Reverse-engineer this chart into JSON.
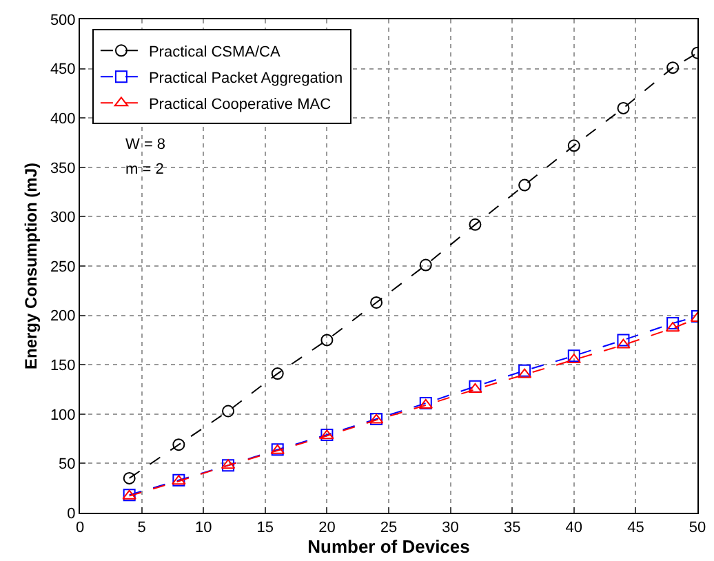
{
  "chart_data": {
    "type": "line",
    "xlabel": "Number of Devices",
    "ylabel": "Energy Consumption (mJ)",
    "x": [
      4,
      8,
      12,
      16,
      20,
      24,
      28,
      32,
      36,
      40,
      44,
      48,
      50
    ],
    "series": [
      {
        "name": "Practical CSMA/CA",
        "color": "#000000",
        "marker": "circle",
        "line_style": "dashed",
        "values": [
          35,
          69,
          103,
          141,
          175,
          213,
          251,
          292,
          332,
          372,
          410,
          451,
          466
        ]
      },
      {
        "name": "Practical Packet Aggregation",
        "color": "#0000ff",
        "marker": "square",
        "line_style": "dashed",
        "values": [
          18,
          33,
          48,
          64,
          79,
          95,
          111,
          128,
          144,
          159,
          175,
          192,
          199
        ]
      },
      {
        "name": "Practical Cooperative MAC",
        "color": "#ff0000",
        "marker": "triangle",
        "line_style": "dashed",
        "values": [
          17,
          32,
          48,
          63,
          78,
          94,
          109,
          125,
          140,
          155,
          170,
          187,
          197
        ]
      }
    ],
    "annotations": [
      "W = 8",
      "m = 2"
    ],
    "xlim": [
      0,
      50
    ],
    "xticks": [
      0,
      5,
      10,
      15,
      20,
      25,
      30,
      35,
      40,
      45,
      50
    ],
    "ylim": [
      0,
      500
    ],
    "yticks": [
      0,
      50,
      100,
      150,
      200,
      250,
      300,
      350,
      400,
      450,
      500
    ],
    "grid": true,
    "legend": "top left"
  }
}
